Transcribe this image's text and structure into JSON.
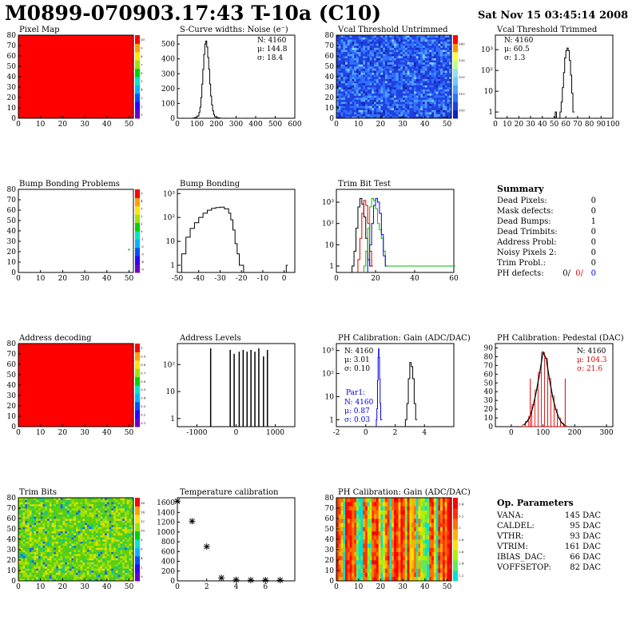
{
  "header": {
    "title": "M0899-070903.17:43 T-10a (C10)",
    "date": "Sat Nov 15 03:45:14 2008"
  },
  "panels": [
    {
      "title": "Pixel Map"
    },
    {
      "title": "S-Curve widths: Noise (e⁻)"
    },
    {
      "title": "Vcal Threshold Untrimmed"
    },
    {
      "title": "Vcal Threshold Trimmed"
    },
    {
      "title": "Bump Bonding Problems"
    },
    {
      "title": "Bump Bonding"
    },
    {
      "title": "Trim Bit Test"
    },
    {
      "title": "Summary"
    },
    {
      "title": "Address decoding"
    },
    {
      "title": "Address Levels"
    },
    {
      "title": "PH Calibration: Gain (ADC/DAC)"
    },
    {
      "title": "PH Calibration: Pedestal (DAC)"
    },
    {
      "title": "Trim Bits"
    },
    {
      "title": "Temperature calibration"
    },
    {
      "title": "PH Calibration: Gain (ADC/DAC)"
    },
    {
      "title": "Op. Parameters"
    }
  ],
  "stats": {
    "noise": [
      "N: 4160",
      "μ: 144.8",
      "σ: 18.4"
    ],
    "vcal_trimmed": [
      "N: 4160",
      "μ: 60.5",
      "σ:  1.3"
    ],
    "gain": [
      "N: 4160",
      "μ: 3.01",
      "σ: 0.10"
    ],
    "gain_par1": [
      "Par1:",
      "N: 4160",
      "μ: 0.87",
      "σ: 0.03"
    ],
    "pedestal": [
      "N: 4160",
      "μ: 104.3",
      "σ: 21.6"
    ]
  },
  "summary": {
    "rows": [
      {
        "label": "Dead Pixels:",
        "value": "0"
      },
      {
        "label": "Mask defects:",
        "value": "0"
      },
      {
        "label": "Dead Bumps:",
        "value": "1"
      },
      {
        "label": "Dead Trimbits:",
        "value": "0"
      },
      {
        "label": "Address Probl:",
        "value": "0"
      },
      {
        "label": "Noisy Pixels 2:",
        "value": "0"
      },
      {
        "label": "Trim Probl.:",
        "value": "0"
      }
    ],
    "ph_label": "PH defects:",
    "ph_values": [
      "0/",
      "0/",
      "0"
    ],
    "ph_colors": [
      "#000000",
      "#e00000",
      "#0000e0"
    ]
  },
  "op_params": {
    "rows": [
      {
        "label": "VANA:",
        "value": "145 DAC"
      },
      {
        "label": "CALDEL:",
        "value": "95 DAC"
      },
      {
        "label": "VTHR:",
        "value": "93 DAC"
      },
      {
        "label": "VTRIM:",
        "value": "161 DAC"
      },
      {
        "label": "IBIAS_DAC:",
        "value": "66 DAC"
      },
      {
        "label": "VOFFSETOP:",
        "value": "82 DAC"
      }
    ]
  },
  "colors": {
    "map_red": "#ff0000",
    "blue_series": "#0000e0",
    "red_series": "#e00000",
    "green_series": "#00c000"
  },
  "chart_data": [
    {
      "id": "pixel_map",
      "type": "heatmap",
      "xlim": [
        0,
        52
      ],
      "ylim": [
        0,
        80
      ],
      "xticks": [
        0,
        10,
        20,
        30,
        40,
        50
      ],
      "yticks": [
        0,
        10,
        20,
        30,
        40,
        50,
        60,
        70,
        80
      ],
      "zticks": [
        "1",
        "2",
        "3",
        "4",
        "5",
        "6",
        "7",
        "8",
        "9",
        "10"
      ],
      "fill": "uniform-red"
    },
    {
      "id": "noise",
      "type": "line",
      "xlim": [
        0,
        600
      ],
      "ylim": [
        0,
        560
      ],
      "xticks": [
        0,
        100,
        200,
        300,
        400,
        500,
        600
      ],
      "yticks": [
        0,
        100,
        200,
        300,
        400,
        500
      ],
      "x": [
        70,
        80,
        90,
        100,
        110,
        115,
        120,
        125,
        130,
        135,
        140,
        145,
        150,
        155,
        160,
        165,
        170,
        175,
        180,
        185,
        190,
        200,
        210,
        220
      ],
      "y": [
        0,
        2,
        6,
        15,
        40,
        75,
        140,
        230,
        330,
        430,
        500,
        520,
        480,
        410,
        330,
        230,
        150,
        90,
        50,
        25,
        10,
        4,
        2,
        0
      ]
    },
    {
      "id": "vcal_untrimmed",
      "type": "heatmap",
      "xlim": [
        0,
        52
      ],
      "ylim": [
        0,
        80
      ],
      "xticks": [
        0,
        10,
        20,
        30,
        40,
        50
      ],
      "yticks": [
        0,
        10,
        20,
        30,
        40,
        50,
        60,
        70,
        80
      ],
      "zticks": [
        "100",
        "110",
        "120",
        "130",
        "140"
      ],
      "fill": "noise-blue"
    },
    {
      "id": "vcal_trimmed",
      "type": "line",
      "log_y": true,
      "xlim": [
        0,
        100
      ],
      "ylim": [
        0.5,
        5000
      ],
      "xticks": [
        0,
        10,
        20,
        30,
        40,
        50,
        60,
        70,
        80,
        90,
        100
      ],
      "yticks": [
        "1",
        "10",
        "10²",
        "10³"
      ],
      "x": [
        51,
        52,
        53,
        54,
        55,
        56,
        57,
        58,
        59,
        60,
        61,
        62,
        63,
        64,
        65,
        66
      ],
      "y": [
        1,
        0.5,
        0.5,
        0.5,
        1,
        3,
        15,
        80,
        400,
        900,
        1200,
        900,
        300,
        60,
        8,
        1
      ]
    },
    {
      "id": "bump_map",
      "type": "heatmap",
      "xlim": [
        0,
        52
      ],
      "ylim": [
        0,
        80
      ],
      "xticks": [
        0,
        10,
        20,
        30,
        40,
        50
      ],
      "yticks": [
        0,
        10,
        20,
        30,
        40,
        50,
        60,
        70,
        80
      ],
      "zticks": [
        "-5",
        "-4",
        "-3",
        "-2",
        "-1",
        "0",
        "1",
        "2",
        "3",
        "4",
        "5"
      ],
      "points": [
        {
          "x": 50,
          "y": 22
        }
      ]
    },
    {
      "id": "bump_bonding",
      "type": "line",
      "log_y": true,
      "xlim": [
        -50,
        5
      ],
      "ylim": [
        0.5,
        1500
      ],
      "xticks": [
        -50,
        -40,
        -30,
        -20,
        -10,
        0
      ],
      "yticks": [
        "1",
        "10",
        "10²",
        "10³"
      ],
      "x": [
        -48,
        -46,
        -44,
        -42,
        -40,
        -38,
        -36,
        -34,
        -32,
        -30,
        -28,
        -26,
        -25,
        -24,
        -23,
        -22,
        -21,
        -20,
        -19,
        1
      ],
      "y": [
        3,
        15,
        35,
        60,
        100,
        150,
        200,
        240,
        260,
        270,
        230,
        150,
        80,
        30,
        8,
        3,
        1,
        1,
        0.5,
        1
      ]
    },
    {
      "id": "trim_bit_test",
      "type": "line",
      "log_y": true,
      "xlim": [
        0,
        60
      ],
      "ylim": [
        0.5,
        4000
      ],
      "xticks": [
        0,
        20,
        40,
        60
      ],
      "yticks": [
        "1",
        "10",
        "10²",
        "10³"
      ],
      "series": [
        {
          "color": "#000000",
          "x": [
            8,
            9,
            10,
            11,
            12,
            13,
            14,
            15,
            16,
            17
          ],
          "y": [
            1,
            5,
            60,
            600,
            1500,
            800,
            200,
            20,
            2,
            1
          ]
        },
        {
          "color": "#e00000",
          "x": [
            11,
            12,
            13,
            14,
            15,
            16,
            17,
            18
          ],
          "y": [
            2,
            20,
            300,
            1200,
            700,
            100,
            5,
            1
          ]
        },
        {
          "color": "#00c000",
          "x": [
            14,
            15,
            16,
            17,
            18,
            19,
            20,
            21,
            22,
            23,
            24,
            25,
            60
          ],
          "y": [
            1,
            5,
            60,
            600,
            1500,
            1200,
            500,
            100,
            50,
            20,
            5,
            1,
            1
          ]
        },
        {
          "color": "#0000e0",
          "x": [
            16,
            17,
            18,
            19,
            20,
            21,
            22,
            23,
            24,
            25
          ],
          "y": [
            2,
            10,
            100,
            700,
            1500,
            1000,
            300,
            30,
            3,
            1
          ]
        }
      ]
    },
    {
      "id": "address_map",
      "type": "heatmap",
      "xlim": [
        0,
        52
      ],
      "ylim": [
        0,
        80
      ],
      "xticks": [
        0,
        10,
        20,
        30,
        40,
        50
      ],
      "yticks": [
        0,
        10,
        20,
        30,
        40,
        50,
        60,
        70,
        80
      ],
      "zticks": [
        "0.1",
        "0.2",
        "0.3",
        "0.4",
        "0.5",
        "0.6",
        "0.7",
        "0.8",
        "0.9",
        "1"
      ],
      "fill": "uniform-red"
    },
    {
      "id": "address_levels",
      "type": "bar",
      "log_y": true,
      "xlim": [
        -1500,
        1500
      ],
      "ylim": [
        0.5,
        600
      ],
      "xticks": [
        -1000,
        0,
        1000
      ],
      "yticks": [
        "1",
        "10",
        "10²"
      ],
      "x": [
        -650,
        -150,
        -50,
        80,
        180,
        280,
        380,
        480,
        580,
        700,
        800
      ],
      "y": [
        400,
        350,
        250,
        300,
        350,
        300,
        350,
        300,
        400,
        200,
        350
      ]
    },
    {
      "id": "ph_gain",
      "type": "line",
      "log_y": true,
      "xlim": [
        -2,
        6
      ],
      "ylim": [
        0.5,
        2000
      ],
      "xticks": [
        -2,
        0,
        2,
        4
      ],
      "yticks": [
        "1",
        "10",
        "10²",
        "10³"
      ],
      "series": [
        {
          "color": "#0000e0",
          "x": [
            0.72,
            0.76,
            0.8,
            0.84,
            0.87,
            0.9,
            0.94,
            0.98,
            1.02
          ],
          "y": [
            1,
            3,
            50,
            500,
            1200,
            500,
            60,
            5,
            1
          ]
        },
        {
          "color": "#000000",
          "x": [
            2.7,
            2.8,
            2.9,
            3.0,
            3.1,
            3.2,
            3.3,
            3.4
          ],
          "y": [
            1,
            5,
            60,
            300,
            200,
            60,
            5,
            1
          ]
        }
      ]
    },
    {
      "id": "ph_pedestal",
      "type": "bar",
      "xlim": [
        -50,
        320
      ],
      "ylim": [
        0,
        95
      ],
      "xticks": [
        0,
        100,
        200,
        300
      ],
      "yticks": [
        0,
        10,
        20,
        30,
        40,
        50,
        60,
        70,
        80,
        90
      ],
      "x": [
        40,
        50,
        60,
        70,
        80,
        90,
        100,
        110,
        120,
        130,
        140,
        150,
        160,
        170
      ],
      "y": [
        2,
        6,
        12,
        25,
        42,
        62,
        85,
        78,
        55,
        35,
        20,
        10,
        4,
        1
      ]
    },
    {
      "id": "trim_bits",
      "type": "heatmap",
      "xlim": [
        0,
        52
      ],
      "ylim": [
        0,
        80
      ],
      "xticks": [
        0,
        10,
        20,
        30,
        40,
        50
      ],
      "yticks": [
        0,
        10,
        20,
        30,
        40,
        50,
        60,
        70,
        80
      ],
      "zticks": [
        "0",
        "2",
        "4",
        "6",
        "8",
        "10",
        "12",
        "14",
        "16"
      ],
      "fill": "noise-green"
    },
    {
      "id": "temperature",
      "type": "scatter",
      "xlim": [
        0,
        8
      ],
      "ylim": [
        0,
        1700
      ],
      "xticks": [
        0,
        2,
        4,
        6
      ],
      "yticks": [
        0,
        200,
        400,
        600,
        800,
        1000,
        1200,
        1400,
        1600
      ],
      "x": [
        0,
        1,
        2,
        3,
        4,
        5,
        6,
        7
      ],
      "y": [
        1630,
        1220,
        700,
        60,
        20,
        15,
        15,
        15
      ]
    },
    {
      "id": "ph_gain_map",
      "type": "heatmap",
      "xlim": [
        0,
        52
      ],
      "ylim": [
        0,
        80
      ],
      "xticks": [
        0,
        10,
        20,
        30,
        40,
        50
      ],
      "yticks": [
        0,
        10,
        20,
        30,
        40,
        50,
        60,
        70,
        80
      ],
      "zticks": [
        "2.2",
        "2.4",
        "2.6",
        "2.8",
        "3",
        "3.2",
        "3.4"
      ],
      "fill": "column-stripes"
    }
  ]
}
